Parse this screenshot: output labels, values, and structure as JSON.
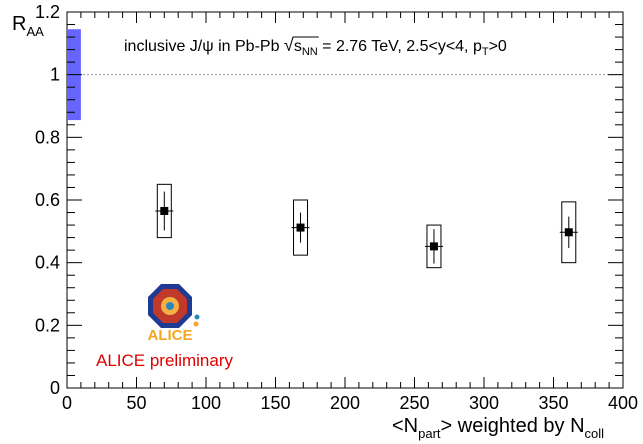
{
  "chart_data": {
    "type": "scatter",
    "title": "",
    "legend_text": {
      "prefix": "inclusive J/ψ in Pb-Pb ",
      "sqrt_sym": "√",
      "s_main": "s",
      "s_sub": "NN",
      "energy": " = 2.76 TeV, 2.5<y<4, p",
      "pt_sub": "T",
      "pt_tail": ">0"
    },
    "xlabel": {
      "open": "<N",
      "sub1": "part",
      "middle": "> weighted by N",
      "sub2": "coll"
    },
    "ylabel": {
      "main": "R",
      "sub": "AA"
    },
    "xlim": [
      0,
      400
    ],
    "ylim": [
      0,
      1.2
    ],
    "xticks": [
      0,
      50,
      100,
      150,
      200,
      250,
      300,
      350,
      400
    ],
    "xtick_labels": [
      "0",
      "50",
      "100",
      "150",
      "200",
      "250",
      "300",
      "350",
      "400"
    ],
    "yticks": [
      0,
      0.2,
      0.4,
      0.6,
      0.8,
      1,
      1.2
    ],
    "ytick_labels": [
      "0",
      "0.2",
      "0.4",
      "0.6",
      "0.8",
      "1",
      "1.2"
    ],
    "reference_line": 1.0,
    "global_uncertainty": {
      "x_range": [
        0,
        10
      ],
      "y_range": [
        0.855,
        1.145
      ],
      "color": "#6666ff"
    },
    "series": [
      {
        "x": [
          70,
          168,
          264,
          361
        ],
        "y": [
          0.565,
          0.512,
          0.452,
          0.497
        ],
        "stat_err": [
          0.062,
          0.048,
          0.055,
          0.05
        ],
        "syst_err": [
          0.085,
          0.088,
          0.068,
          0.097
        ],
        "marker": "square",
        "color": "#000000"
      }
    ],
    "annotation": "ALICE preliminary",
    "logo_text": "ALICE",
    "grid": false
  }
}
